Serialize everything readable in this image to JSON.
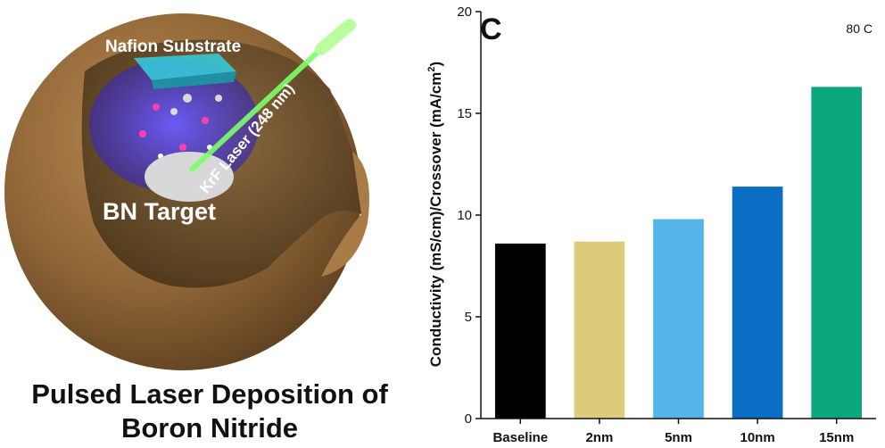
{
  "illustration": {
    "substrate_label": "Nafion Substrate",
    "target_label": "BN Target",
    "laser_label": "KrF Laser (248 nm)",
    "caption_line1": "Pulsed Laser Deposition of",
    "caption_line2": "Boron Nitride"
  },
  "chart_data": {
    "type": "bar",
    "panel_letter": "C",
    "annotation": "80 C",
    "categories": [
      "Baseline",
      "2nm",
      "5nm",
      "10nm",
      "15nm"
    ],
    "values": [
      8.6,
      8.7,
      9.8,
      11.4,
      16.3
    ],
    "colors": [
      "#000000",
      "#dccb7a",
      "#55b4e8",
      "#0a6fc4",
      "#0aa77c"
    ],
    "xlabel": "",
    "ylabel_main": "Conductivity (mS/cm)/Crossover (mA/cm",
    "ylabel_sup": "2",
    "ylabel_close": ")",
    "ylim": [
      0,
      20
    ],
    "yticks": [
      0,
      5,
      10,
      15,
      20
    ]
  }
}
